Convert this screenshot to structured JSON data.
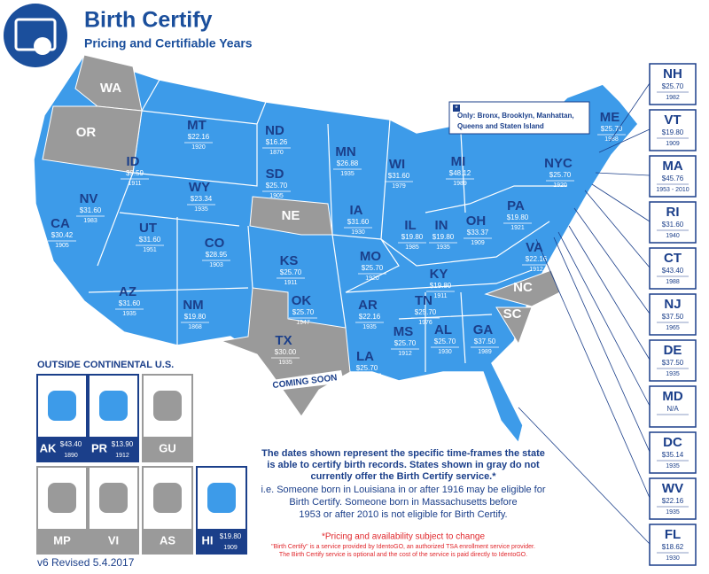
{
  "header": {
    "title": "Birth Certify",
    "subtitle": "Pricing and Certifiable Years"
  },
  "map_states": [
    {
      "abbr": "WA"
    },
    {
      "abbr": "OR"
    },
    {
      "abbr": "MT",
      "price": "$22.16",
      "year": "1920"
    },
    {
      "abbr": "ID",
      "price": "$9.59",
      "year": "1911"
    },
    {
      "abbr": "WY",
      "price": "$23.34",
      "year": "1935"
    },
    {
      "abbr": "ND",
      "price": "$16.26",
      "year": "1870"
    },
    {
      "abbr": "SD",
      "price": "$25.70",
      "year": "1905"
    },
    {
      "abbr": "MN",
      "price": "$26.88",
      "year": "1935"
    },
    {
      "abbr": "WI",
      "price": "$31.60",
      "year": "1979"
    },
    {
      "abbr": "MI",
      "price": "$48.12",
      "year": "1989"
    },
    {
      "abbr": "NYC",
      "price": "$25.70",
      "year": "1920"
    },
    {
      "abbr": "ME",
      "price": "$25.70",
      "year": "1988"
    },
    {
      "abbr": "NV",
      "price": "$31.60",
      "year": "1983"
    },
    {
      "abbr": "CA",
      "price": "$30.42",
      "year": "1905"
    },
    {
      "abbr": "UT",
      "price": "$31.60",
      "year": "1951"
    },
    {
      "abbr": "CO",
      "price": "$28.95",
      "year": "1903"
    },
    {
      "abbr": "NE"
    },
    {
      "abbr": "IA",
      "price": "$31.60",
      "year": "1930"
    },
    {
      "abbr": "IL",
      "price": "$19.80",
      "year": "1985"
    },
    {
      "abbr": "IN",
      "price": "$19.80",
      "year": "1935"
    },
    {
      "abbr": "OH",
      "price": "$33.37",
      "year": "1909"
    },
    {
      "abbr": "PA",
      "price": "$19.80",
      "year": "1921"
    },
    {
      "abbr": "KS",
      "price": "$25.70",
      "year": "1911"
    },
    {
      "abbr": "MO",
      "price": "$25.70",
      "year": "1920"
    },
    {
      "abbr": "KY",
      "price": "$19.80",
      "year": "1911"
    },
    {
      "abbr": "VA",
      "price": "$22.16",
      "year": "1912"
    },
    {
      "abbr": "AZ",
      "price": "$31.60",
      "year": "1935"
    },
    {
      "abbr": "NM",
      "price": "$19.80",
      "year": "1868"
    },
    {
      "abbr": "OK",
      "price": "$25.70",
      "year": "1947"
    },
    {
      "abbr": "AR",
      "price": "$22.16",
      "year": "1935"
    },
    {
      "abbr": "TN",
      "price": "$25.70",
      "year": "1976"
    },
    {
      "abbr": "NC"
    },
    {
      "abbr": "SC"
    },
    {
      "abbr": "TX",
      "price": "$30.00",
      "year": "1935"
    },
    {
      "abbr": "LA",
      "price": "$25.70",
      "year": "1916"
    },
    {
      "abbr": "MS",
      "price": "$25.70",
      "year": "1912"
    },
    {
      "abbr": "AL",
      "price": "$25.70",
      "year": "1930"
    },
    {
      "abbr": "GA",
      "price": "$37.50",
      "year": "1989"
    }
  ],
  "texas_note": "COMING SOON",
  "nyc_note": {
    "marker": "*",
    "text_lines": [
      "Only: Bronx, Brooklyn, Manhattan,",
      "Queens and Staten Island"
    ]
  },
  "callouts": [
    {
      "abbr": "NH",
      "price": "$25.70",
      "year": "1982"
    },
    {
      "abbr": "VT",
      "price": "$19.80",
      "year": "1909"
    },
    {
      "abbr": "MA",
      "price": "$45.76",
      "year": "1953 - 2010"
    },
    {
      "abbr": "RI",
      "price": "$31.60",
      "year": "1940"
    },
    {
      "abbr": "CT",
      "price": "$43.40",
      "year": "1988"
    },
    {
      "abbr": "NJ",
      "price": "$37.50",
      "year": "1965"
    },
    {
      "abbr": "DE",
      "price": "$37.50",
      "year": "1935"
    },
    {
      "abbr": "MD",
      "price": "N/A"
    },
    {
      "abbr": "DC",
      "price": "$35.14",
      "year": "1935"
    },
    {
      "abbr": "WV",
      "price": "$22.16",
      "year": "1935"
    },
    {
      "abbr": "FL",
      "price": "$18.62",
      "year": "1930"
    }
  ],
  "outside": {
    "heading": "OUTSIDE CONTINENTAL U.S.",
    "tiles": [
      {
        "abbr": "AK",
        "price": "$43.40",
        "year": "1890"
      },
      {
        "abbr": "PR",
        "price": "$13.90",
        "year": "1912"
      },
      {
        "abbr": "GU"
      },
      {
        "abbr": "MP"
      },
      {
        "abbr": "VI"
      },
      {
        "abbr": "AS"
      },
      {
        "abbr": "HI",
        "price": "$19.80",
        "year": "1909"
      }
    ]
  },
  "notes": {
    "main_lines": [
      "The dates shown represent the specific time-frames the state",
      "is able to certify birth records. States shown in gray do not",
      "currently offer the Birth Certify service.*"
    ],
    "example_lines": [
      "i.e. Someone born in Louisiana in or after 1916 may be eligible for",
      "Birth Certify. Someone born in Massachusetts before",
      "1953 or after 2010 is not eligible for Birth Certify."
    ],
    "pricing": "*Pricing and availability subject to change",
    "fine_print": [
      "\"Birth Certify\" is a service provided by IdentoGO, an authorized TSA enrollment service provider.",
      "The Birth Certify service is optional and the cost of the service is paid directly to IdentoGO."
    ]
  },
  "version": "v6 Revised 5.4.2017"
}
